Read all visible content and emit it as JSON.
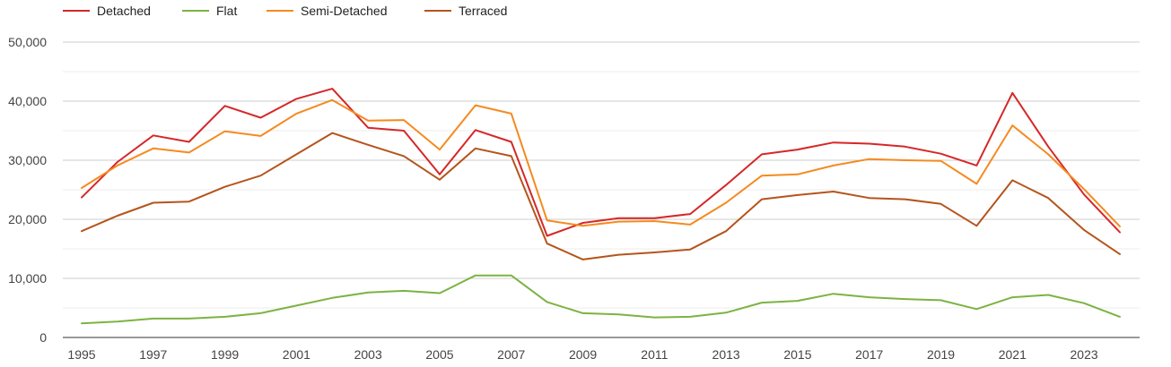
{
  "chart_data": {
    "type": "line",
    "title": "",
    "xlabel": "",
    "ylabel": "",
    "x": [
      1995,
      1996,
      1997,
      1998,
      1999,
      2000,
      2001,
      2002,
      2003,
      2004,
      2005,
      2006,
      2007,
      2008,
      2009,
      2010,
      2011,
      2012,
      2013,
      2014,
      2015,
      2016,
      2017,
      2018,
      2019,
      2020,
      2021,
      2022,
      2023,
      2024
    ],
    "x_tick_labels": [
      "1995",
      "1997",
      "1999",
      "2001",
      "2003",
      "2005",
      "2007",
      "2009",
      "2011",
      "2013",
      "2015",
      "2017",
      "2019",
      "2021",
      "2023"
    ],
    "y_tick_labels": [
      "0",
      "10,000",
      "20,000",
      "30,000",
      "40,000",
      "50,000"
    ],
    "ylim": [
      0,
      50000
    ],
    "grid": true,
    "legend_position": "top-left",
    "series": [
      {
        "name": "Detached",
        "color": "#d62728",
        "values": [
          23700,
          29700,
          34200,
          33100,
          39200,
          37200,
          40400,
          42100,
          35500,
          35000,
          27600,
          35100,
          33100,
          17200,
          19400,
          20200,
          20200,
          20900,
          25800,
          31000,
          31800,
          33000,
          32800,
          32300,
          31100,
          29100,
          41400,
          32300,
          24200,
          17800
        ]
      },
      {
        "name": "Flat",
        "color": "#7cb342",
        "values": [
          2400,
          2700,
          3200,
          3200,
          3500,
          4100,
          5400,
          6700,
          7600,
          7900,
          7500,
          10500,
          10500,
          6000,
          4100,
          3900,
          3400,
          3500,
          4200,
          5900,
          6200,
          7400,
          6800,
          6500,
          6300,
          4800,
          6800,
          7200,
          5800,
          3500
        ]
      },
      {
        "name": "Semi-Detached",
        "color": "#f58a1f",
        "values": [
          25300,
          29100,
          32000,
          31300,
          34900,
          34100,
          37900,
          40200,
          36700,
          36800,
          31800,
          39300,
          37900,
          19800,
          18900,
          19600,
          19700,
          19100,
          22800,
          27400,
          27600,
          29100,
          30200,
          30000,
          29900,
          26000,
          35900,
          31000,
          25100,
          18800
        ]
      },
      {
        "name": "Terraced",
        "color": "#b5541c",
        "values": [
          18000,
          20600,
          22800,
          23000,
          25500,
          27400,
          31000,
          34600,
          32600,
          30700,
          26700,
          32000,
          30700,
          15900,
          13200,
          14000,
          14400,
          14900,
          18000,
          23400,
          24100,
          24700,
          23600,
          23400,
          22600,
          18900,
          26600,
          23600,
          18200,
          14100
        ]
      }
    ]
  }
}
